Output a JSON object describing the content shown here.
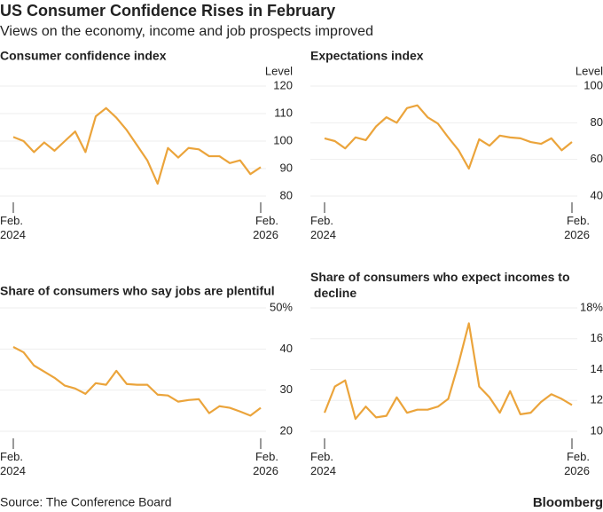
{
  "header": {
    "title": "US Consumer Confidence Rises in February",
    "subtitle": "Views on the economy, income and job prospects improved"
  },
  "footer": {
    "source": "Source: The Conference Board",
    "brand": "Bloomberg"
  },
  "chart_data": [
    {
      "type": "line",
      "title": "Consumer confidence index",
      "unit": "Level",
      "categories": [
        "Feb.\n2024",
        null,
        null,
        null,
        null,
        null,
        null,
        null,
        null,
        null,
        null,
        null,
        null,
        null,
        null,
        null,
        null,
        null,
        null,
        null,
        null,
        null,
        null,
        null,
        "Feb.\n2026"
      ],
      "values": [
        101.5,
        100,
        96,
        99.5,
        96.5,
        100,
        103.5,
        96,
        109,
        112,
        108.5,
        104,
        98.5,
        93,
        84.5,
        97.5,
        94,
        97.5,
        97,
        94.5,
        94.5,
        92,
        93,
        88,
        90.5
      ],
      "color": "#eba43b",
      "ylim": [
        80,
        120
      ],
      "yticks": [
        80,
        90,
        100,
        110,
        120
      ]
    },
    {
      "type": "line",
      "title": "Expectations index",
      "unit": "Level",
      "categories": [
        "Feb.\n2024",
        null,
        null,
        null,
        null,
        null,
        null,
        null,
        null,
        null,
        null,
        null,
        null,
        null,
        null,
        null,
        null,
        null,
        null,
        null,
        null,
        null,
        null,
        null,
        "Feb.\n2026"
      ],
      "values": [
        71.5,
        70,
        66,
        72,
        70.5,
        78,
        83,
        80,
        88,
        89.5,
        83,
        79.5,
        72,
        65,
        55,
        71,
        67.5,
        73,
        72,
        71.5,
        69.5,
        68.5,
        71.5,
        65,
        69.5
      ],
      "color": "#eba43b",
      "ylim": [
        40,
        100
      ],
      "yticks": [
        40,
        60,
        80,
        100
      ]
    },
    {
      "type": "line",
      "title": "Share of consumers who say jobs are plentiful",
      "categories": [
        "Feb.\n2024",
        null,
        null,
        null,
        null,
        null,
        null,
        null,
        null,
        null,
        null,
        null,
        null,
        null,
        null,
        null,
        null,
        null,
        null,
        null,
        null,
        null,
        null,
        null,
        "Feb.\n2026"
      ],
      "values": [
        40.5,
        39.2,
        36.0,
        34.5,
        33.0,
        31.1,
        30.4,
        29.1,
        31.7,
        31.3,
        34.7,
        31.5,
        31.3,
        31.3,
        28.9,
        28.7,
        27.2,
        27.6,
        27.8,
        24.4,
        26.1,
        25.7,
        24.8,
        23.8,
        25.7
      ],
      "color": "#eba43b",
      "ylim": [
        20,
        50
      ],
      "yticks": [
        20,
        30,
        40,
        {
          "value": 50,
          "label": "50%"
        }
      ]
    },
    {
      "type": "line",
      "title": "Share of consumers who expect incomes to decline",
      "categories": [
        "Feb.\n2024",
        null,
        null,
        null,
        null,
        null,
        null,
        null,
        null,
        null,
        null,
        null,
        null,
        null,
        null,
        null,
        null,
        null,
        null,
        null,
        null,
        null,
        null,
        null,
        "Feb.\n2026"
      ],
      "values": [
        11.2,
        12.9,
        13.3,
        10.8,
        11.6,
        10.9,
        11.0,
        12.2,
        11.2,
        11.4,
        11.4,
        11.6,
        12.1,
        14.4,
        17.0,
        12.9,
        12.2,
        11.2,
        12.6,
        11.1,
        11.2,
        11.9,
        12.4,
        12.1,
        11.7
      ],
      "color": "#eba43b",
      "ylim": [
        10,
        18
      ],
      "yticks": [
        10,
        12,
        14,
        16,
        {
          "value": 18,
          "label": "18%"
        }
      ]
    }
  ]
}
